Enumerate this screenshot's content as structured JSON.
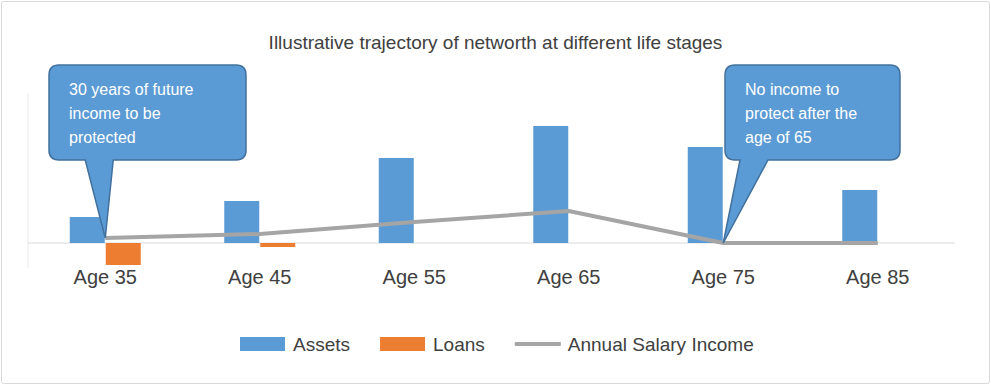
{
  "chart_data": {
    "type": "bar",
    "title": "Illustrative trajectory of networth at different life stages",
    "categories": [
      "Age 35",
      "Age 45",
      "Age 55",
      "Age 65",
      "Age 75",
      "Age 85"
    ],
    "series": [
      {
        "name": "Assets",
        "type": "bar",
        "color": "#5b9bd5",
        "values": [
          26,
          42,
          85,
          117,
          96,
          53
        ]
      },
      {
        "name": "Loans",
        "type": "bar",
        "color": "#ed7d31",
        "values": [
          -22,
          -4,
          0,
          0,
          0,
          0
        ]
      },
      {
        "name": "Annual Salary Income",
        "type": "line",
        "color": "#a5a5a5",
        "values": [
          5,
          9,
          21,
          32,
          0,
          0
        ]
      }
    ],
    "ylim": [
      -25,
      150
    ],
    "yticks": [
      0
    ],
    "grid": false,
    "tick_labels": "x",
    "legend": "bottom",
    "annotations": [
      {
        "text": [
          "30 years of future",
          "income to be",
          "protected"
        ],
        "category": "Age 35"
      },
      {
        "text": [
          "No income to",
          "protect after the",
          "age of 65"
        ],
        "category": "Age 75"
      }
    ]
  }
}
